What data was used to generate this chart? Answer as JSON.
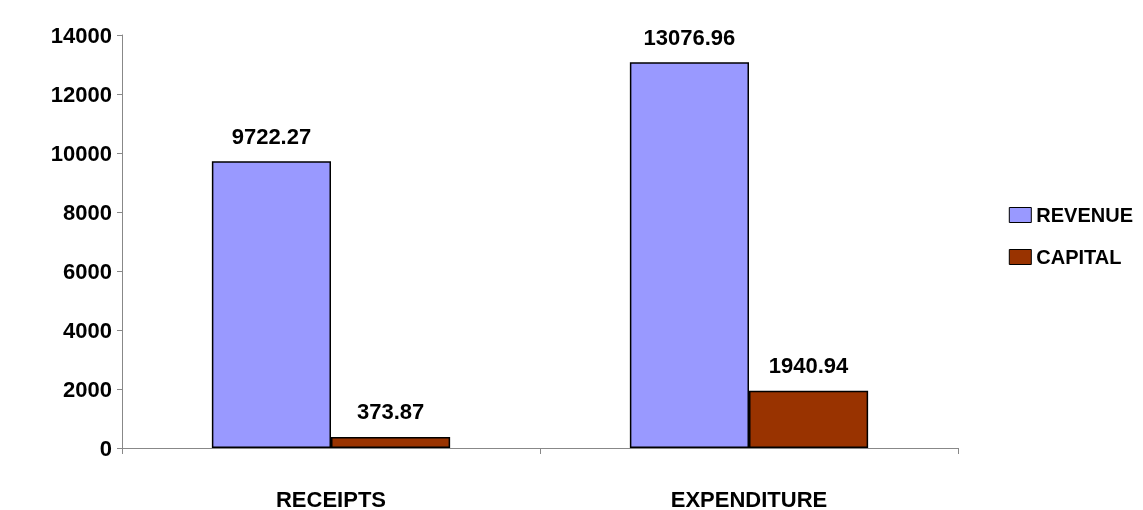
{
  "chart_data": {
    "type": "bar",
    "categories": [
      "RECEIPTS",
      "EXPENDITURE"
    ],
    "series": [
      {
        "name": "REVENUE",
        "color": "#9999ff",
        "values": [
          9722.27,
          13076.96
        ]
      },
      {
        "name": "CAPITAL",
        "color": "#993300",
        "values": [
          373.87,
          1940.94
        ]
      }
    ],
    "ylim": [
      0,
      14000
    ],
    "yticks": [
      0,
      2000,
      4000,
      6000,
      8000,
      10000,
      12000,
      14000
    ],
    "grid": false,
    "legend": "right",
    "data_labels": true
  }
}
